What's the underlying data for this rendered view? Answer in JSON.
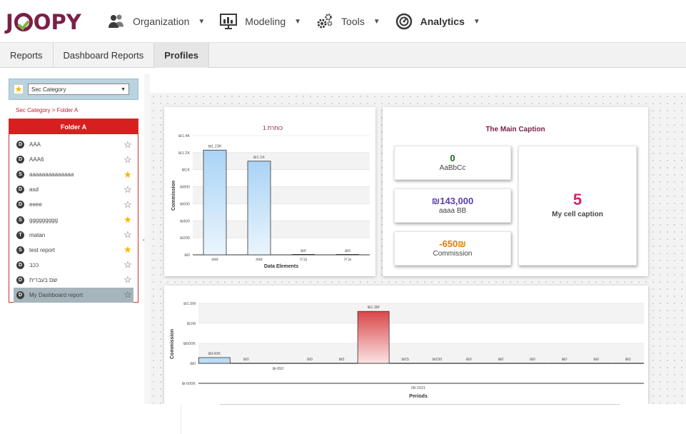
{
  "app": {
    "logo": "JOOPY",
    "nav": [
      {
        "label": "Organization",
        "icon": "people-icon"
      },
      {
        "label": "Modeling",
        "icon": "chart-board-icon"
      },
      {
        "label": "Tools",
        "icon": "gears-icon"
      },
      {
        "label": "Analytics",
        "icon": "gauge-icon"
      }
    ]
  },
  "tabs": [
    "Reports",
    "Dashboard Reports",
    "Profiles"
  ],
  "active_tab": "Profiles",
  "left": {
    "category_select": "Sec Category",
    "breadcrumb": "Sec Category  >  Folder A",
    "folder_title": "Folder A",
    "items": [
      {
        "badge": "D",
        "name": "AAA",
        "starred": false
      },
      {
        "badge": "D",
        "name": "AAA6",
        "starred": false
      },
      {
        "badge": "S",
        "name": "aaaaaaaaaaaaaa",
        "starred": true
      },
      {
        "badge": "D",
        "name": "asd",
        "starred": false
      },
      {
        "badge": "D",
        "name": "eeee",
        "starred": false
      },
      {
        "badge": "S",
        "name": "ggggggggg",
        "starred": true
      },
      {
        "badge": "T",
        "name": "matan",
        "starred": false
      },
      {
        "badge": "S",
        "name": "test report",
        "starred": true
      },
      {
        "badge": "D",
        "name": "ככב",
        "starred": false
      },
      {
        "badge": "D",
        "name": "שם בעברית",
        "starred": false
      },
      {
        "badge": "D",
        "name": "My Dashboard report",
        "starred": false,
        "selected": true
      }
    ]
  },
  "caption_card": {
    "title": "The Main Caption",
    "kpis": [
      {
        "value": "0",
        "label": "AaBbCc",
        "color": "#1b6b1b"
      },
      {
        "value": "₪143,000",
        "label": "aaaa BB",
        "color": "#5a3fb0"
      },
      {
        "value": "-650₪",
        "label": "Commission",
        "color": "#e07b00"
      }
    ],
    "big": {
      "value": "5",
      "label": "My cell caption"
    }
  },
  "chart_data": [
    {
      "type": "bar",
      "title": "כותרת 1",
      "xlabel": "Data Elements",
      "ylabel": "Commission",
      "categories": [
        "ddd",
        "ddd",
        "גביה",
        "גביה"
      ],
      "values": [
        1230,
        1100,
        0,
        0
      ],
      "data_labels": [
        "₪1.23K",
        "₪1.1K",
        "₪0",
        "₪0"
      ],
      "yticks": [
        "₪0",
        "₪200",
        "₪400",
        "₪600",
        "₪800",
        "₪1K",
        "₪1.2K",
        "₪1.4K"
      ],
      "ylim": [
        0,
        1400
      ],
      "grid": true
    },
    {
      "type": "bar",
      "title": "",
      "xlabel": "Periods",
      "ylabel": "Commission",
      "category_label": "08-2021",
      "values": [
        143000,
        0,
        -650,
        0,
        5,
        1300000,
        15,
        100,
        0,
        0,
        0,
        0,
        0,
        0
      ],
      "data_labels": [
        "₪143K",
        "₪0",
        "₪-650",
        "₪0",
        "₪5",
        "₪1.3M",
        "₪15",
        "₪100",
        "₪0",
        "₪0",
        "₪0",
        "₪0",
        "₪0",
        "₪0"
      ],
      "yticks": [
        "₪-500K",
        "₪0",
        "₪500K",
        "₪1M",
        "₪1.5M"
      ],
      "ylim": [
        -500000,
        1500000
      ],
      "highlight_color": "#d9474a",
      "bar_color": "#bcdcf5",
      "grid": true
    }
  ]
}
